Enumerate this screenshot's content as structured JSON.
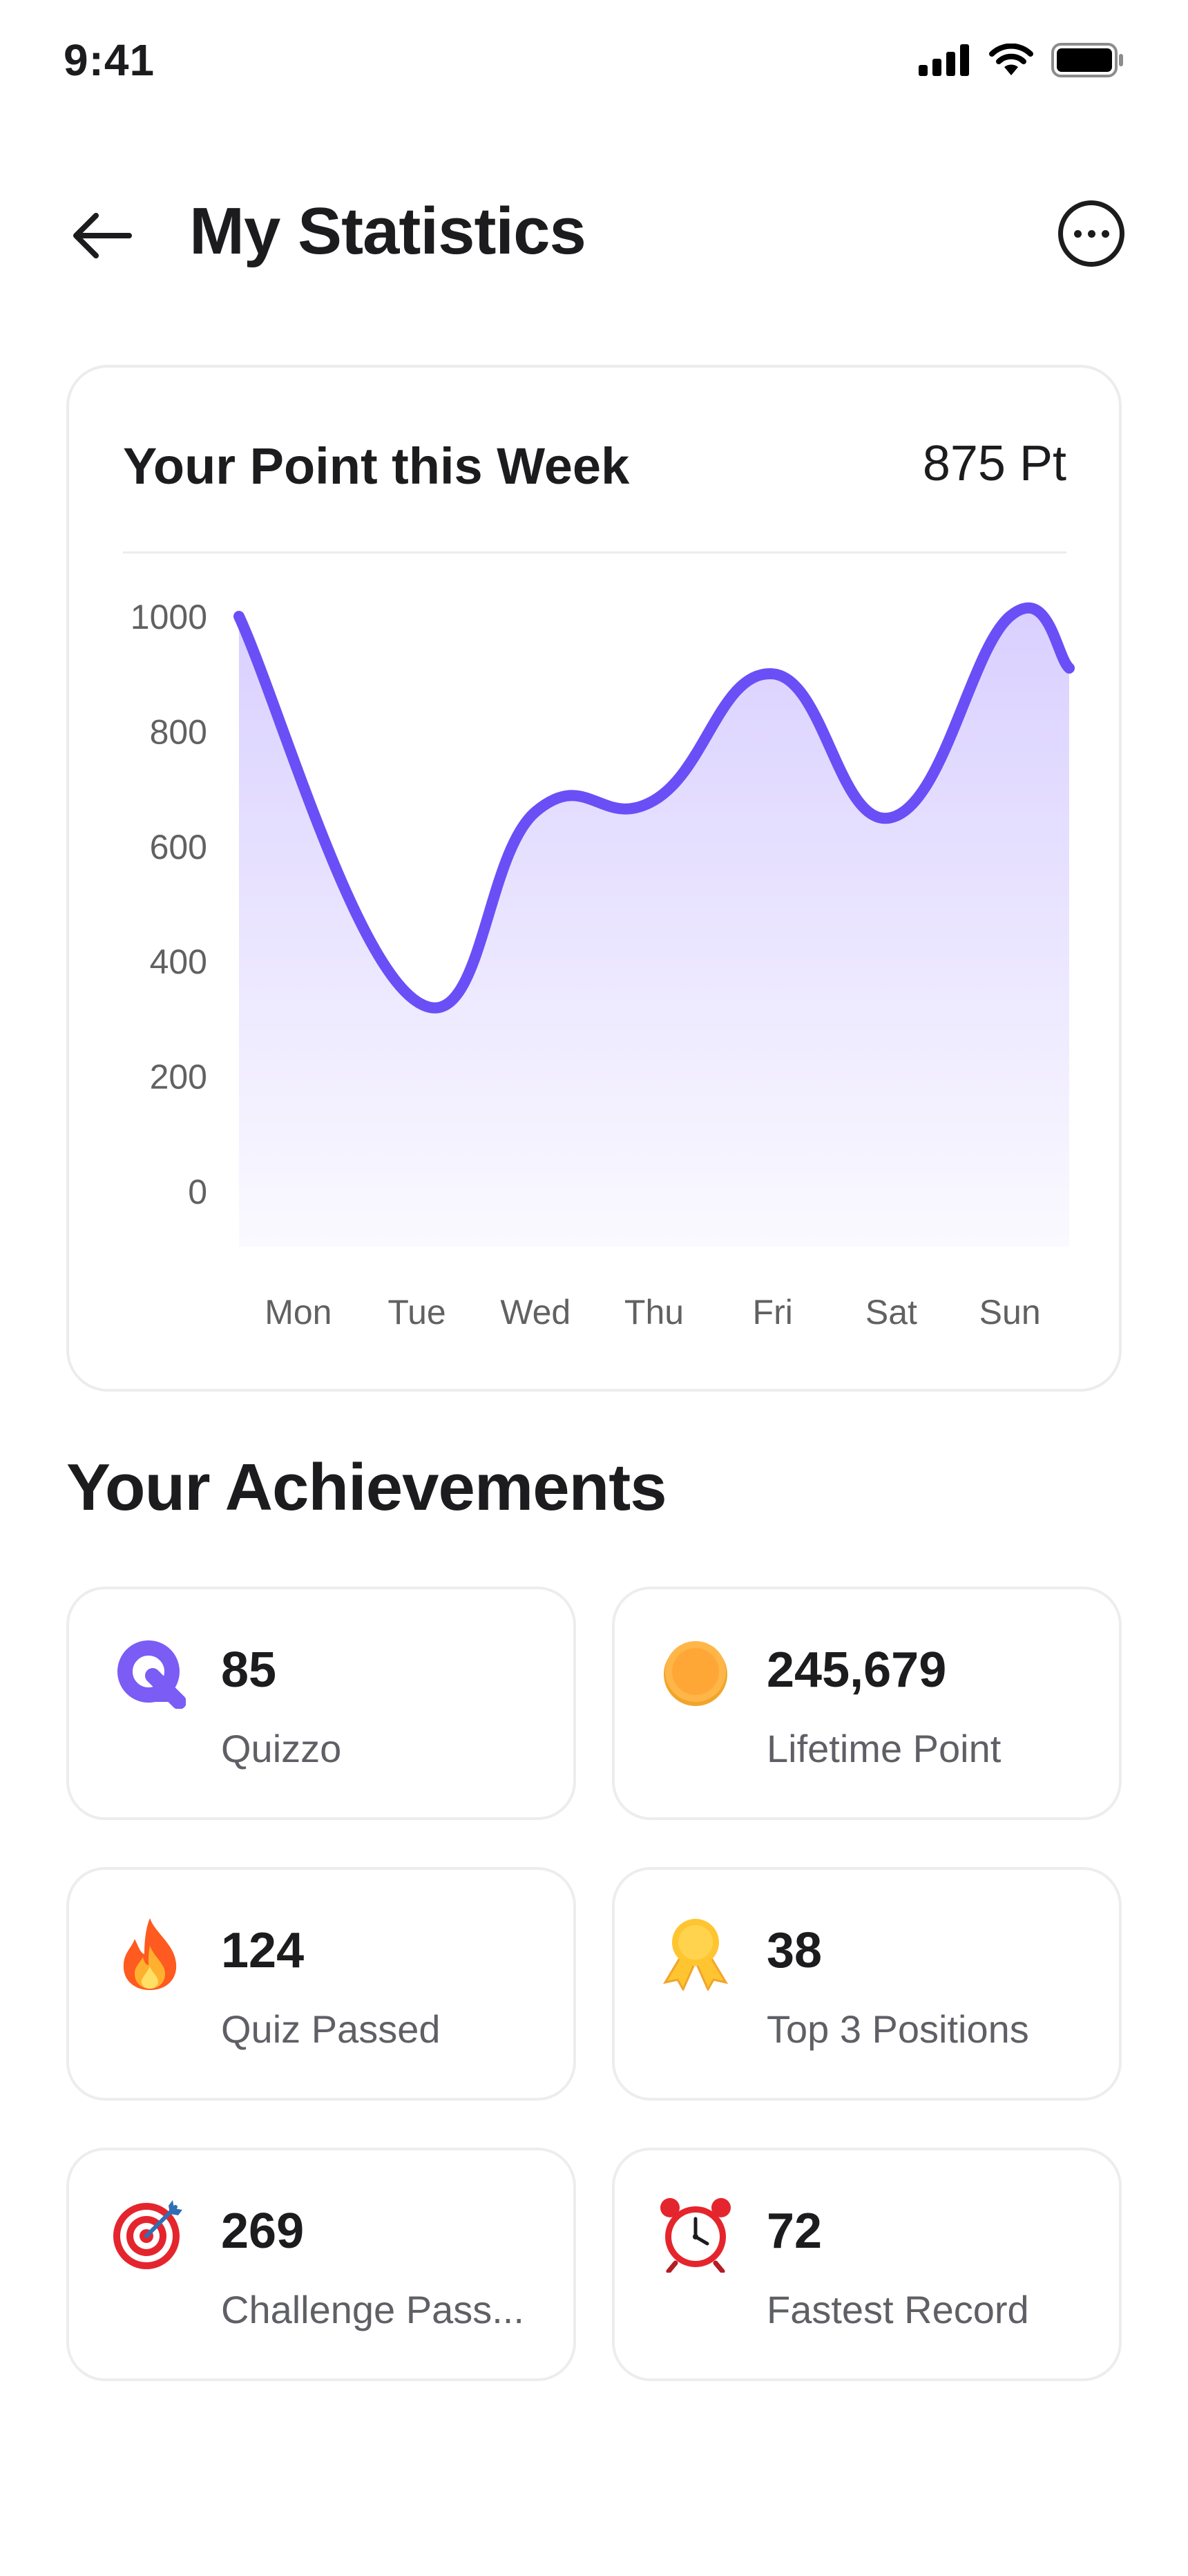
{
  "status_bar": {
    "time": "9:41"
  },
  "header": {
    "title": "My Statistics"
  },
  "chart_card": {
    "title": "Your Point this Week",
    "points": "875 Pt"
  },
  "chart_data": {
    "type": "area",
    "categories": [
      "Mon",
      "Tue",
      "Wed",
      "Thu",
      "Fri",
      "Sat",
      "Sun"
    ],
    "values": [
      1000,
      330,
      660,
      680,
      900,
      650,
      1000
    ],
    "end_value": 910,
    "ylim": [
      0,
      1000
    ],
    "yticks": [
      "1000",
      "800",
      "600",
      "400",
      "200",
      "0"
    ],
    "line_color": "#6a4ff6",
    "fill_color": "#d9d0ff"
  },
  "achievements": {
    "title": "Your Achievements",
    "items": [
      {
        "icon": "quizzo-logo-icon",
        "value": "85",
        "label": "Quizzo"
      },
      {
        "icon": "coin-icon",
        "value": "245,679",
        "label": "Lifetime Point"
      },
      {
        "icon": "fire-icon",
        "value": "124",
        "label": "Quiz Passed"
      },
      {
        "icon": "medal-icon",
        "value": "38",
        "label": "Top 3 Positions"
      },
      {
        "icon": "target-icon",
        "value": "269",
        "label": "Challenge Pass..."
      },
      {
        "icon": "alarm-clock-icon",
        "value": "72",
        "label": "Fastest Record"
      }
    ]
  }
}
